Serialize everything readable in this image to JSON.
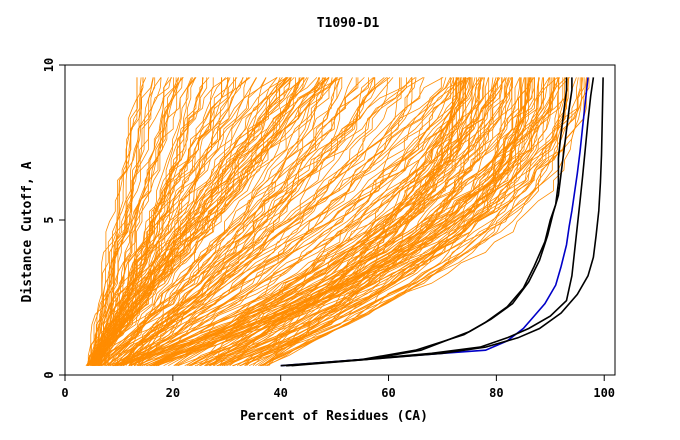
{
  "chart_data": {
    "type": "line",
    "title": "T1090-D1",
    "xlabel": "Percent of Residues (CA)",
    "ylabel": "Distance Cutoff, A",
    "xlim": [
      0,
      102
    ],
    "ylim": [
      0,
      10
    ],
    "x_ticks": [
      0,
      20,
      40,
      60,
      80,
      100
    ],
    "y_ticks": [
      0,
      5,
      10
    ],
    "grid": false,
    "legend": "none",
    "colors": {
      "background_models": "#ff8c00",
      "highlighted_models": "#000000",
      "reference_model": "#0000c8",
      "axes": "#000000"
    },
    "background_series_count": 250,
    "background_series_description": "Cumulative distance-cutoff curves for many predicted models, starting near y=0.3 at x between about 4 and 40 and reaching y=9.6 at x between about 13 and 97.",
    "series": [
      {
        "color": "#0000c8",
        "x": [
          40,
          55,
          70,
          78,
          82,
          85,
          87,
          89,
          91,
          92,
          93,
          93.5,
          94,
          94.5,
          95,
          95.5,
          96,
          96.5,
          97
        ],
        "y": [
          0.3,
          0.5,
          0.7,
          0.8,
          1.1,
          1.5,
          1.9,
          2.3,
          2.9,
          3.5,
          4.2,
          4.8,
          5.3,
          5.9,
          6.5,
          7.2,
          8.0,
          8.8,
          9.6
        ]
      },
      {
        "color": "#000000",
        "x": [
          41,
          55,
          65,
          74,
          78,
          82,
          85,
          87,
          89,
          90,
          91,
          91.5,
          91.5,
          92,
          92.5,
          93,
          93
        ],
        "y": [
          0.3,
          0.5,
          0.8,
          1.3,
          1.7,
          2.2,
          2.8,
          3.5,
          4.3,
          5.0,
          5.5,
          6.2,
          7.0,
          7.8,
          8.5,
          9.2,
          9.6
        ]
      },
      {
        "color": "#000000",
        "x": [
          42,
          56,
          66,
          75,
          79,
          83,
          86,
          88,
          89.5,
          90.5,
          91.5,
          92,
          92.5,
          93,
          93.5,
          94,
          94
        ],
        "y": [
          0.3,
          0.5,
          0.8,
          1.4,
          1.8,
          2.3,
          3.0,
          3.7,
          4.5,
          5.2,
          5.8,
          6.5,
          7.2,
          7.9,
          8.6,
          9.2,
          9.6
        ]
      },
      {
        "color": "#000000",
        "x": [
          40,
          55,
          68,
          77,
          82,
          86,
          90,
          93,
          94,
          94.5,
          95,
          95.5,
          96,
          96.5,
          97,
          97.5,
          98
        ],
        "y": [
          0.3,
          0.5,
          0.7,
          0.9,
          1.2,
          1.5,
          1.9,
          2.4,
          3.2,
          4.0,
          4.8,
          5.6,
          6.4,
          7.3,
          8.2,
          9.0,
          9.6
        ]
      },
      {
        "color": "#000000",
        "x": [
          41,
          56,
          70,
          78,
          84,
          88,
          92,
          95,
          97,
          98,
          98.5,
          99,
          99.3,
          99.5,
          99.6,
          99.7,
          99.8
        ],
        "y": [
          0.3,
          0.5,
          0.7,
          0.9,
          1.2,
          1.5,
          2.0,
          2.6,
          3.2,
          3.8,
          4.5,
          5.3,
          6.2,
          7.1,
          8.0,
          8.8,
          9.6
        ]
      }
    ]
  }
}
